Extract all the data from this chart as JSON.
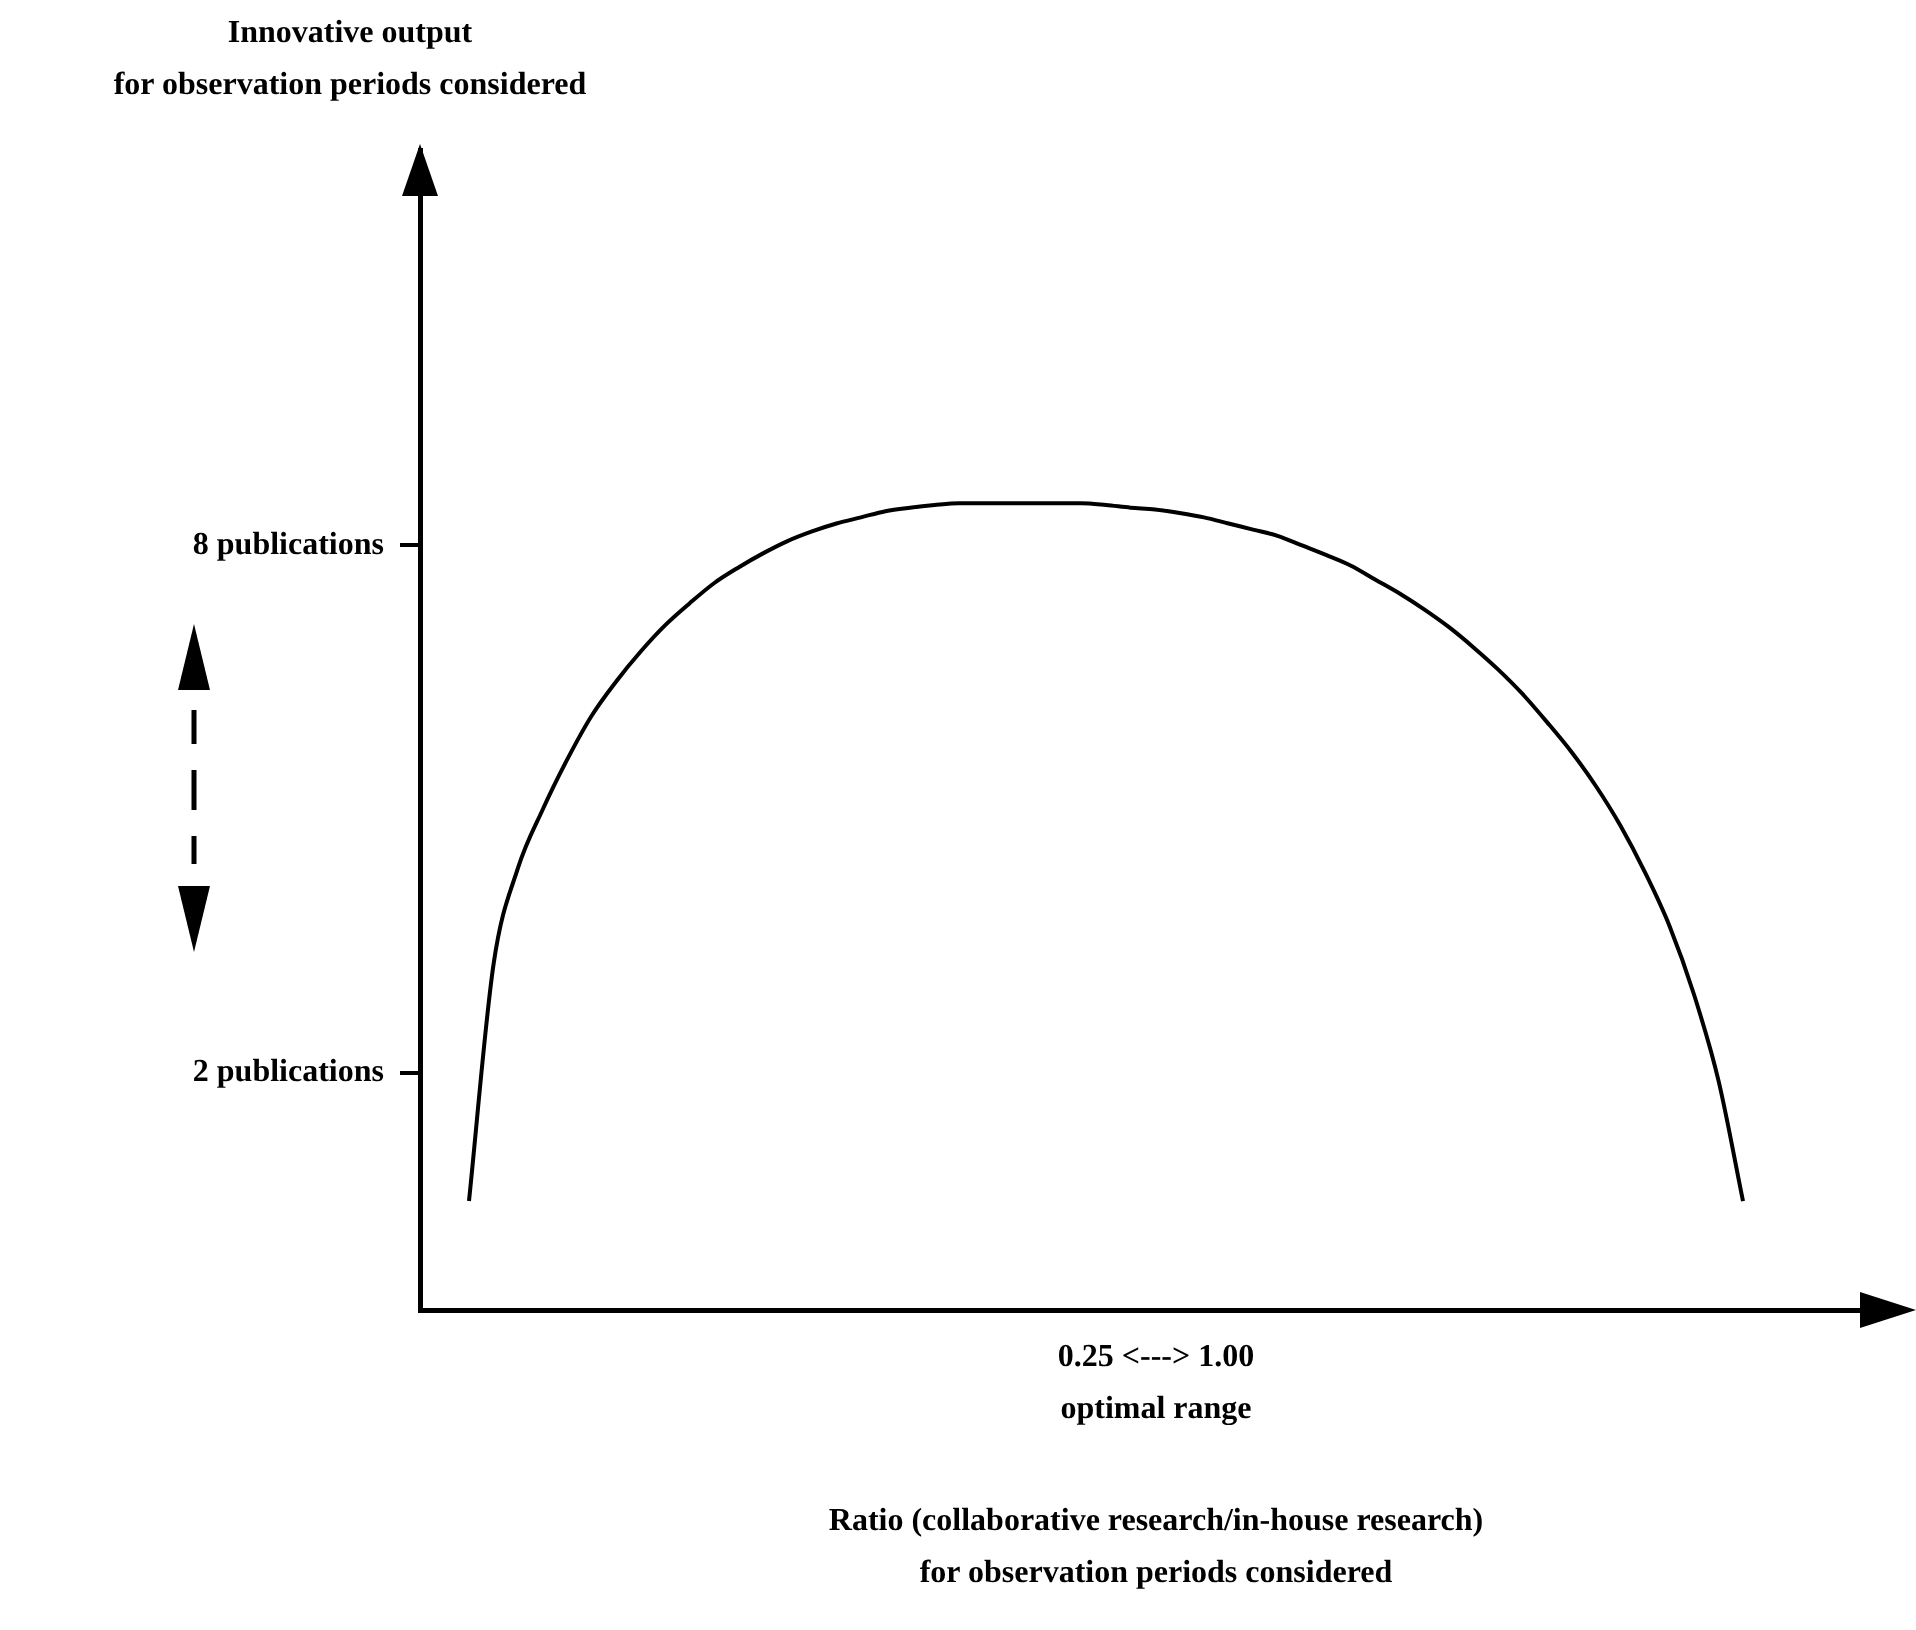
{
  "chart_data": {
    "type": "line",
    "ylabel": "Innovative output\nfor observation periods considered",
    "annotations": [
      "0.25 <---> 1.00\noptimal range",
      "Ratio (collaborative research/in-house research)\nfor observation periods considered"
    ],
    "categories": [
      null,
      null,
      null,
      null,
      null,
      null,
      null,
      null,
      null,
      null,
      null,
      null,
      null,
      null,
      null,
      null,
      null,
      null,
      null,
      null,
      null,
      null,
      null,
      null,
      null,
      null,
      null,
      null,
      null,
      null,
      null,
      null,
      null,
      null,
      null,
      null,
      null,
      null,
      null,
      null,
      null,
      null,
      null,
      null,
      null,
      null,
      null,
      null,
      null,
      null,
      null,
      null,
      null,
      null,
      null,
      null,
      null,
      null,
      null,
      null,
      null
    ],
    "values": [
      null,
      null,
      0.54,
      3.23,
      4.33,
      4.99,
      5.56,
      6.06,
      6.45,
      6.79,
      7.09,
      7.34,
      7.57,
      7.75,
      7.91,
      8.05,
      8.16,
      8.25,
      8.32,
      8.39,
      8.43,
      8.46,
      8.48,
      8.48,
      8.48,
      8.48,
      8.48,
      8.48,
      8.46,
      8.43,
      8.41,
      8.37,
      8.32,
      8.25,
      8.18,
      8.11,
      8.0,
      7.89,
      7.77,
      7.61,
      7.45,
      7.27,
      7.07,
      6.84,
      6.59,
      6.31,
      5.99,
      5.65,
      5.26,
      4.81,
      4.28,
      3.67,
      2.89,
      1.91,
      0.54,
      null,
      null,
      null,
      null,
      null,
      null
    ],
    "color": "#000000",
    "marker": "none",
    "line_style": "solid",
    "grid": false,
    "legend": false,
    "tick_labels": "y",
    "ylim": [
      -0.7,
      12.5
    ],
    "yticks": [
      {
        "value": 2,
        "label": "2 publications"
      },
      {
        "value": 8,
        "label": "8 publications"
      }
    ]
  }
}
